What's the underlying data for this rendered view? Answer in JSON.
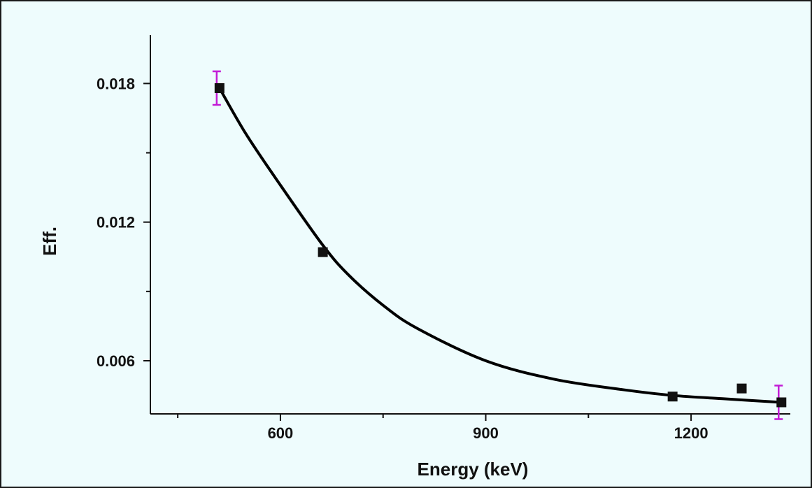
{
  "chart_data": {
    "type": "scatter",
    "title": "",
    "xlabel": "Energy (keV)",
    "ylabel": "Eff.",
    "xlim": [
      410,
      1345
    ],
    "ylim": [
      0.0037,
      0.0201
    ],
    "x_ticks": [
      600,
      900,
      1200
    ],
    "x_tick_labels": [
      "600",
      "900",
      "1200"
    ],
    "y_ticks": [
      0.006,
      0.012,
      0.018
    ],
    "y_tick_labels": [
      "0.006",
      "0.012",
      "0.018"
    ],
    "grid": false,
    "legend": "none",
    "series": [
      {
        "marker": "square",
        "x": [
          511,
          662,
          1173,
          1274,
          1332
        ],
        "y": [
          0.0178,
          0.0107,
          0.00445,
          0.0048,
          0.0042
        ],
        "error_bars_shown_for": [
          511,
          1332
        ],
        "error_bar_color": "#c21bd6"
      }
    ],
    "fit_curve": {
      "type": "line",
      "color": "#000000",
      "x": [
        511,
        550,
        600,
        662,
        700,
        750,
        800,
        900,
        1000,
        1100,
        1173,
        1250,
        1332
      ],
      "y": [
        0.0178,
        0.0158,
        0.0136,
        0.011,
        0.0097,
        0.0084,
        0.0074,
        0.006,
        0.0052,
        0.00475,
        0.0045,
        0.00435,
        0.0042
      ]
    }
  }
}
